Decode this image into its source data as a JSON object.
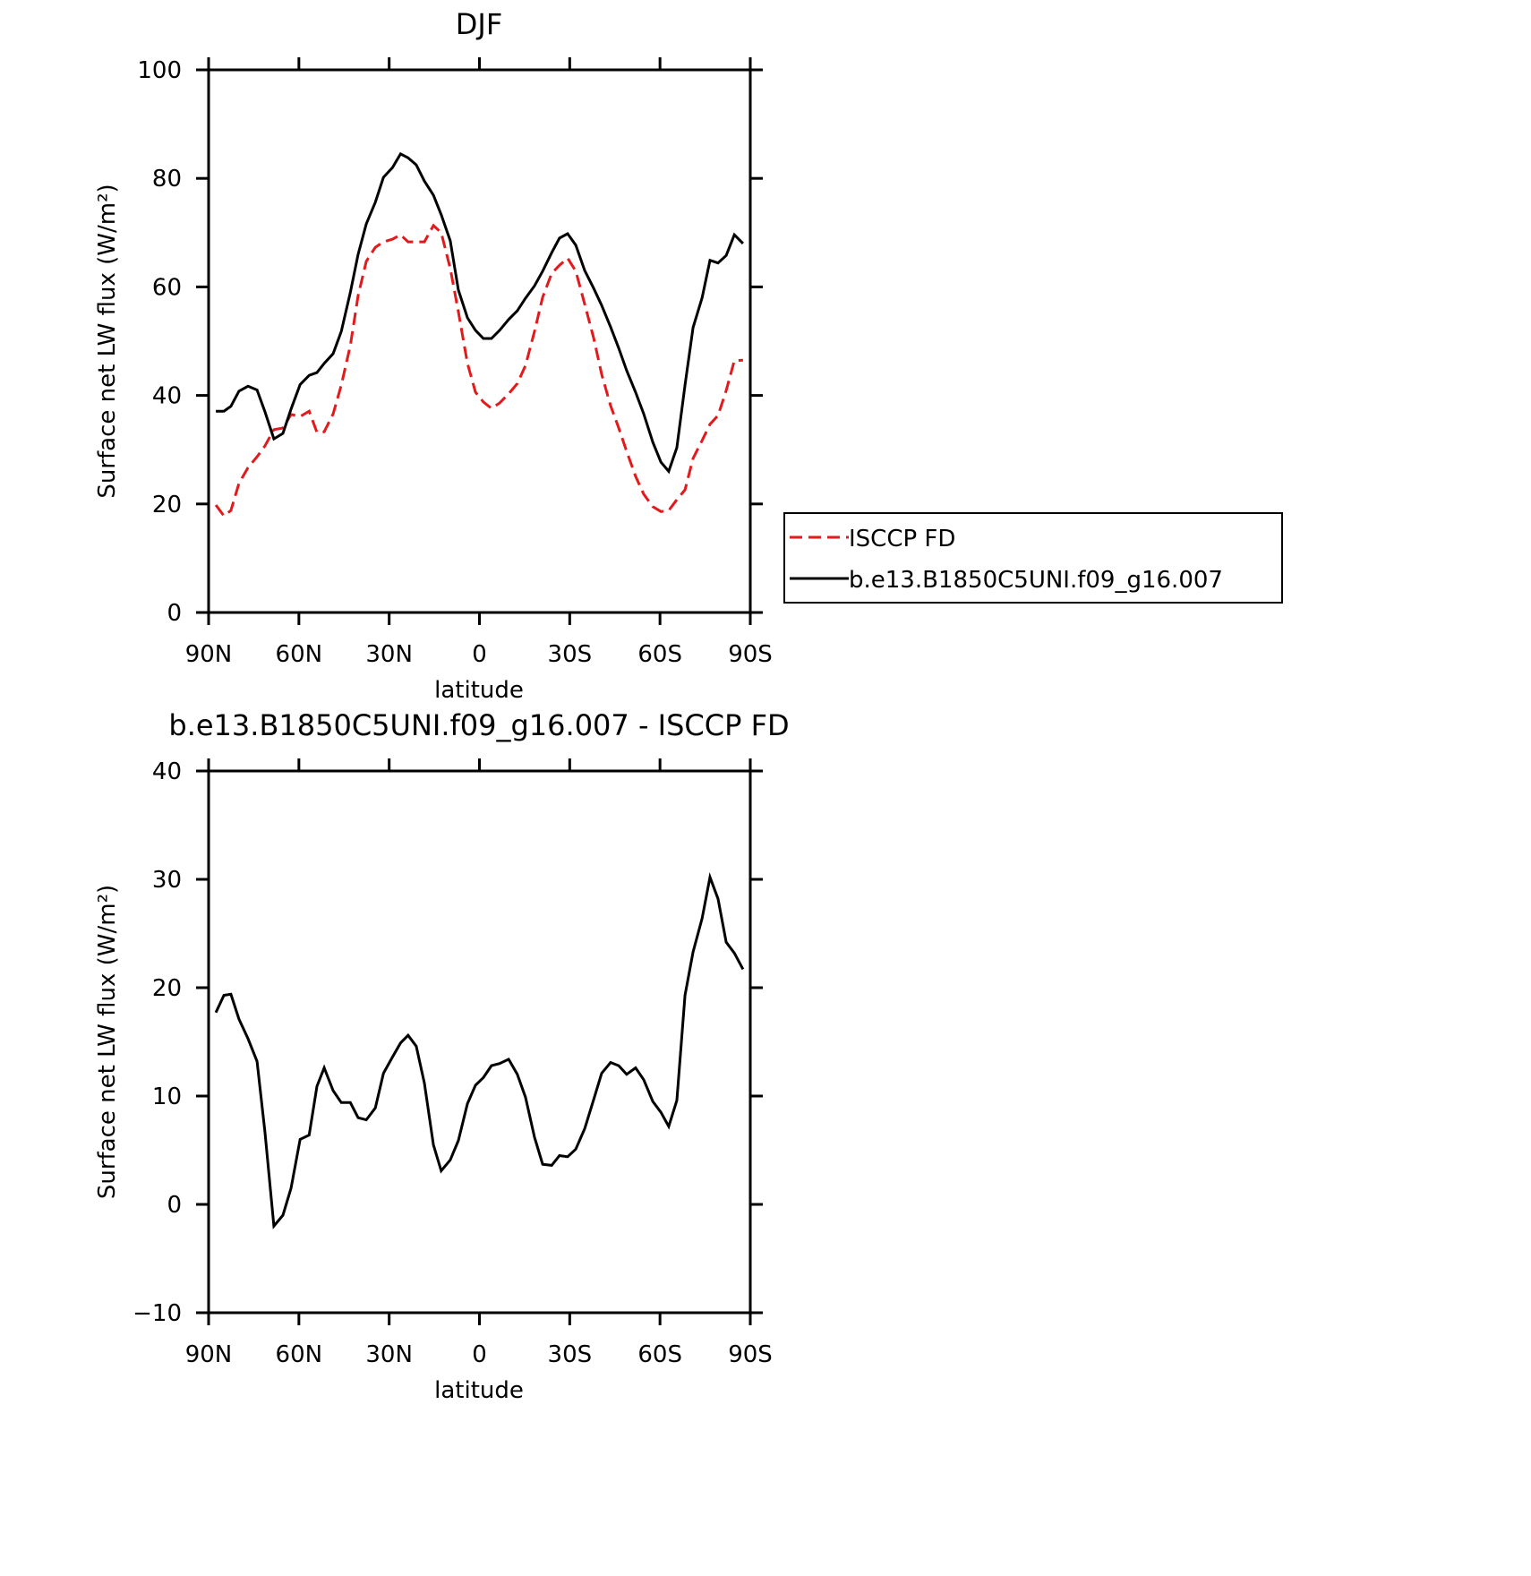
{
  "chart_data": [
    {
      "type": "line",
      "title": "DJF",
      "xlabel": "latitude",
      "ylabel": "Surface net LW flux (W/m²)",
      "x": [
        87.6,
        84.9,
        82.6,
        79.9,
        76.9,
        73.9,
        71.3,
        68.3,
        65.3,
        62.6,
        59.6,
        56.6,
        54.0,
        51.6,
        48.6,
        45.9,
        42.9,
        40.3,
        37.6,
        34.6,
        31.9,
        28.9,
        26.2,
        23.7,
        21.0,
        18.3,
        15.3,
        12.7,
        9.7,
        7.0,
        4.0,
        1.3,
        -1.3,
        -4.0,
        -6.7,
        -9.7,
        -12.6,
        -15.3,
        -18.3,
        -21.0,
        -24.0,
        -26.6,
        -29.3,
        -32.0,
        -35.0,
        -38.0,
        -40.6,
        -43.6,
        -46.3,
        -48.9,
        -51.9,
        -54.6,
        -57.6,
        -60.3,
        -62.9,
        -65.6,
        -68.3,
        -71.0,
        -74.0,
        -76.6,
        -79.3,
        -82.0,
        -84.7,
        -87.6
      ],
      "xlim": [
        90,
        -90
      ],
      "xticks": [
        {
          "value": 90,
          "label": "90N"
        },
        {
          "value": 60,
          "label": "60N"
        },
        {
          "value": 30,
          "label": "30N"
        },
        0,
        {
          "value": -30,
          "label": "30S"
        },
        {
          "value": -60,
          "label": "60S"
        },
        {
          "value": -90,
          "label": "90S"
        }
      ],
      "ylim": [
        0,
        100
      ],
      "yticks": [
        0,
        20,
        40,
        60,
        80,
        100
      ],
      "legend": "right",
      "series": [
        {
          "name": "ISCCP FD",
          "color": "#e31a1c",
          "dashed": true,
          "values": [
            19.8,
            17.8,
            18.8,
            23.8,
            26.7,
            28.7,
            30.7,
            33.7,
            34,
            36.5,
            36.1,
            37.1,
            33.2,
            33.3,
            36.6,
            41.9,
            49.2,
            58.4,
            64.7,
            67.3,
            68.3,
            68.8,
            69.6,
            68.3,
            68.3,
            68.3,
            71.3,
            70,
            63.4,
            55.4,
            45.9,
            40.6,
            38.8,
            37.6,
            38.6,
            40.3,
            42.2,
            45.5,
            51.8,
            58.1,
            62.5,
            64,
            65.3,
            62.9,
            56.8,
            50.5,
            43.9,
            38.1,
            34,
            29.7,
            25.1,
            21.8,
            19.5,
            18.6,
            18.8,
            20.8,
            22.6,
            28.4,
            31.7,
            34.7,
            36.3,
            40.9,
            46.4,
            46.5
          ]
        },
        {
          "name": "b.e13.B1850C5UNI.f09_g16.007",
          "color": "#000000",
          "dashed": false,
          "values": [
            37.1,
            37.1,
            38,
            40.8,
            41.7,
            41,
            37,
            32,
            33,
            37.5,
            42,
            43.7,
            44.2,
            45.9,
            47.7,
            51.8,
            59,
            66,
            71.6,
            75.6,
            80.2,
            82,
            84.5,
            83.8,
            82.5,
            79.5,
            76.9,
            73.3,
            68.5,
            59.4,
            54.3,
            52,
            50.5,
            50.5,
            52,
            54,
            55.6,
            57.9,
            60.2,
            62.9,
            66.3,
            69,
            69.8,
            67.7,
            63,
            59.7,
            56.6,
            52.6,
            48.7,
            44.6,
            40.6,
            36.6,
            31.4,
            27.7,
            26,
            30.4,
            41.9,
            52.5,
            58,
            64.9,
            64.4,
            65.8,
            69.6,
            68
          ]
        }
      ]
    },
    {
      "type": "line",
      "title": "b.e13.B1850C5UNI.f09_g16.007 - ISCCP FD",
      "xlabel": "latitude",
      "ylabel": "Surface net LW flux (W/m²)",
      "x": [
        87.6,
        84.9,
        82.6,
        79.9,
        76.9,
        73.9,
        71.3,
        68.3,
        65.3,
        62.6,
        59.6,
        56.6,
        54.0,
        51.6,
        48.6,
        45.9,
        42.9,
        40.3,
        37.6,
        34.6,
        31.9,
        28.9,
        26.2,
        23.7,
        21.0,
        18.3,
        15.3,
        12.7,
        9.7,
        7.0,
        4.0,
        1.3,
        -1.3,
        -4.0,
        -6.7,
        -9.7,
        -12.6,
        -15.3,
        -18.3,
        -21.0,
        -24.0,
        -26.6,
        -29.3,
        -32.0,
        -35.0,
        -38.0,
        -40.6,
        -43.6,
        -46.3,
        -48.9,
        -51.9,
        -54.6,
        -57.6,
        -60.3,
        -62.9,
        -65.6,
        -68.3,
        -71.0,
        -74.0,
        -76.6,
        -79.3,
        -82.0,
        -84.7,
        -87.6
      ],
      "xlim": [
        90,
        -90
      ],
      "xticks": [
        {
          "value": 90,
          "label": "90N"
        },
        {
          "value": 60,
          "label": "60N"
        },
        {
          "value": 30,
          "label": "30N"
        },
        0,
        {
          "value": -30,
          "label": "30S"
        },
        {
          "value": -60,
          "label": "60S"
        },
        {
          "value": -90,
          "label": "90S"
        }
      ],
      "ylim": [
        -10,
        40
      ],
      "yticks": [
        {
          "value": -10,
          "label": "−10"
        },
        0,
        10,
        20,
        30,
        40
      ],
      "color": "#000000",
      "values": [
        17.7,
        19.3,
        19.4,
        17.1,
        15.3,
        13.2,
        6.7,
        -2,
        -1,
        1.5,
        6,
        6.4,
        10.9,
        12.6,
        10.5,
        9.4,
        9.4,
        8,
        7.8,
        8.9,
        12.1,
        13.6,
        14.9,
        15.6,
        14.6,
        11.2,
        5.5,
        3.1,
        4.1,
        5.9,
        9.3,
        11,
        11.7,
        12.8,
        13,
        13.4,
        12,
        9.9,
        6.2,
        3.7,
        3.6,
        4.5,
        4.4,
        5.1,
        7,
        9.7,
        12.1,
        13.1,
        12.8,
        12,
        12.6,
        11.5,
        9.5,
        8.5,
        7.2,
        9.6,
        19.3,
        23.3,
        26.4,
        30.2,
        28.2,
        24.2,
        23.2,
        21.7
      ]
    }
  ]
}
